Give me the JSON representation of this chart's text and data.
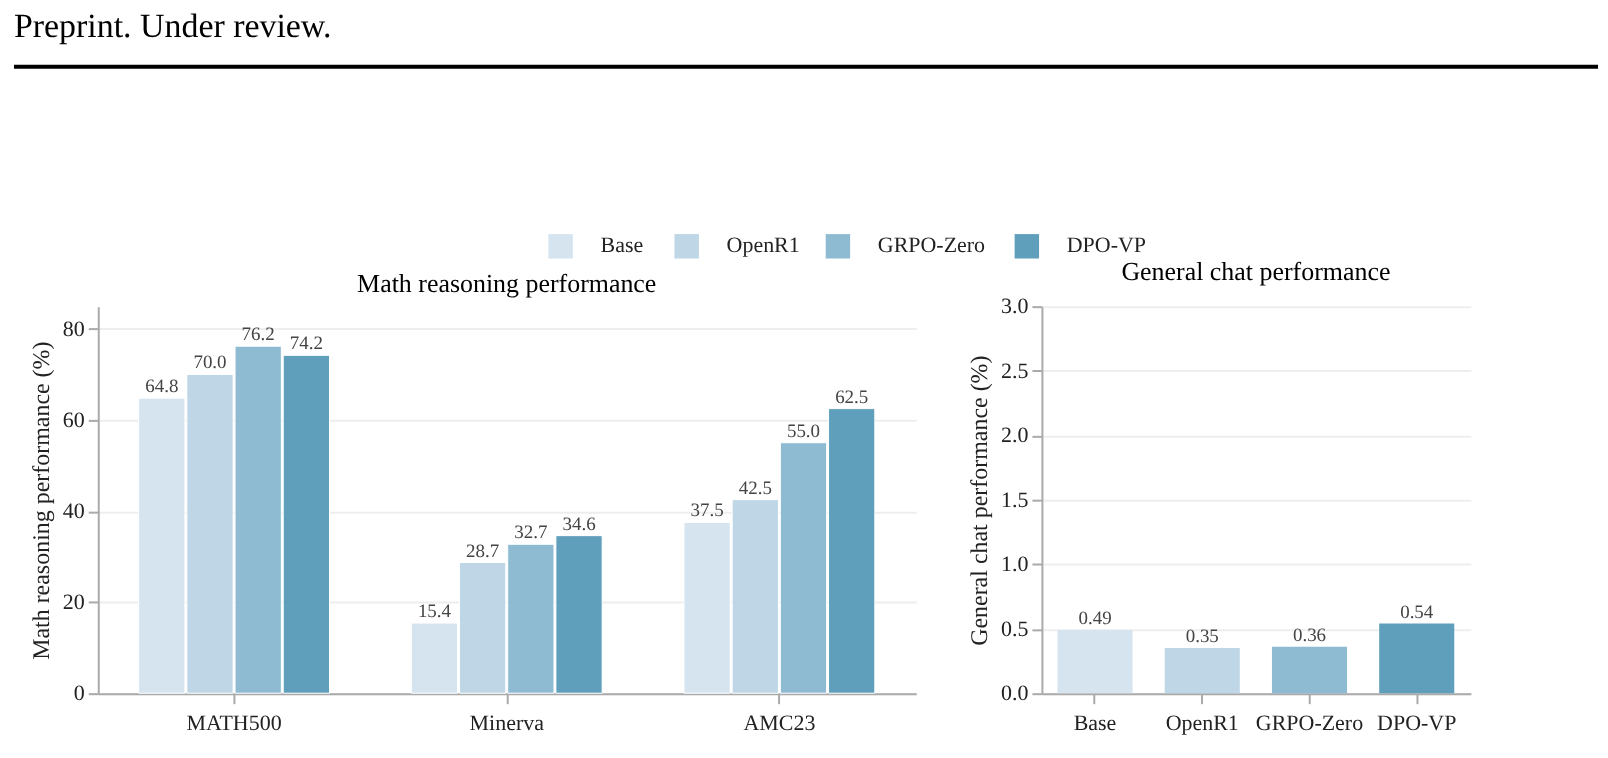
{
  "chart_data": [
    {
      "type": "bar",
      "title": "Math reasoning performance",
      "ylabel": "Math reasoning performance (%)",
      "categories": [
        "MATH500",
        "Minerva",
        "AMC23"
      ],
      "series": [
        {
          "name": "Base",
          "color": "#d6e4ef",
          "values": [
            64.8,
            15.4,
            37.5
          ],
          "value_labels": [
            "64.8",
            "15.4",
            "37.5"
          ]
        },
        {
          "name": "OpenR1",
          "color": "#bed6e5",
          "values": [
            70.0,
            28.7,
            42.5
          ],
          "value_labels": [
            "70.0",
            "28.7",
            "42.5"
          ]
        },
        {
          "name": "GRPO-Zero",
          "color": "#8ebad2",
          "values": [
            76.2,
            32.7,
            55.0
          ],
          "value_labels": [
            "76.2",
            "32.7",
            "55.0"
          ]
        },
        {
          "name": "DPO-VP",
          "color": "#5f9fbb",
          "values": [
            74.2,
            34.6,
            62.5
          ],
          "value_labels": [
            "74.2",
            "34.6",
            "62.5"
          ]
        }
      ],
      "ylim": [
        0,
        85
      ],
      "yticks": [
        0,
        20,
        40,
        60,
        80
      ],
      "grid": "y",
      "legend": "top",
      "data_labels": true,
      "annotations": [
        "Preprint. Under review."
      ]
    },
    {
      "type": "bar",
      "title": "General chat performance",
      "ylabel": "General chat performance (%)",
      "categories": [
        "Base",
        "OpenR1",
        "GRPO-Zero",
        "DPO-VP"
      ],
      "values": [
        0.49,
        0.35,
        0.36,
        0.54
      ],
      "colors": [
        "#d6e4ef",
        "#bed6e5",
        "#8ebad2",
        "#5f9fbb"
      ],
      "ylim": [
        0,
        3.0
      ],
      "yticks": [
        {
          "value": 0,
          "label": "0.0"
        },
        {
          "value": 0.5,
          "label": "0.5"
        },
        {
          "value": 1.0,
          "label": "1.0"
        },
        {
          "value": 1.5,
          "label": "1.5"
        },
        {
          "value": 2.0,
          "label": "2.0"
        },
        {
          "value": 2.5,
          "label": "2.5"
        },
        {
          "value": 3.0,
          "label": "3.0"
        }
      ],
      "grid": "y",
      "data_labels": true
    }
  ]
}
